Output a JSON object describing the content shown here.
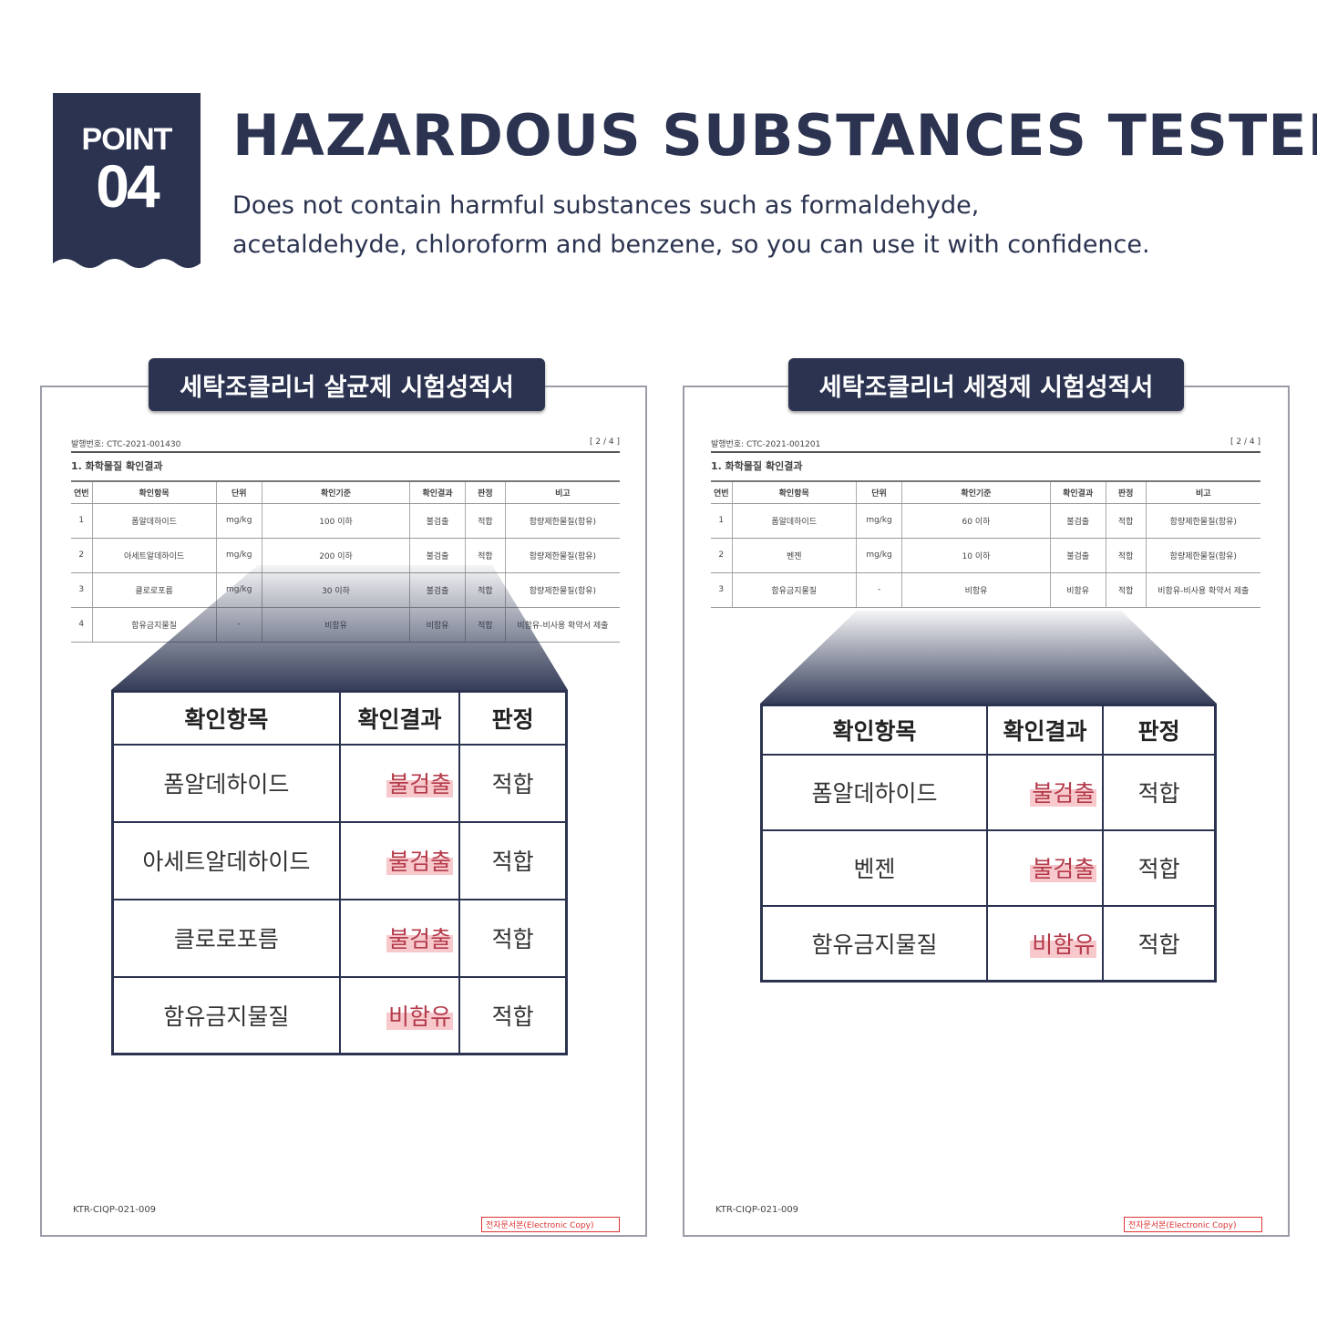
{
  "badge": {
    "label": "POINT",
    "number": "04"
  },
  "title": "HAZARDOUS SUBSTANCES TESTED",
  "subtitle": [
    "Does not contain harmful substances such as formaldehyde,",
    "acetaldehyde, chloroform and benzene, so you can use it with confidence."
  ],
  "colors": {
    "navy": "#2b3350",
    "highlight": "#f7c9cc",
    "stamp": "#dd3333"
  },
  "docs": [
    {
      "heading": "세탁조클리너 살균제 시험성적서",
      "doc_no": "발행번호: CTC-2021-001430",
      "page": "[ 2 / 4 ]",
      "section": "1. 화학물질 확인결과",
      "columns": [
        "연번",
        "확인항목",
        "단위",
        "확인기준",
        "확인결과",
        "판정",
        "비고"
      ],
      "rows": [
        [
          "1",
          "폼알데하이드",
          "mg/kg",
          "100 이하",
          "불검출",
          "적합",
          "함량제한물질(함유)"
        ],
        [
          "2",
          "아세트알데하이드",
          "mg/kg",
          "200 이하",
          "불검출",
          "적합",
          "함량제한물질(함유)"
        ],
        [
          "3",
          "클로로포름",
          "mg/kg",
          "30 이하",
          "불검출",
          "적합",
          "함량제한물질(함유)"
        ],
        [
          "4",
          "함유금지물질",
          "-",
          "비함유",
          "비함유",
          "적합",
          "비함유-비사용 확약서 제출"
        ]
      ],
      "zoom_columns": [
        "확인항목",
        "확인결과",
        "판정"
      ],
      "zoom_rows": [
        [
          "폼알데하이드",
          "불검출",
          "적합"
        ],
        [
          "아세트알데하이드",
          "불검출",
          "적합"
        ],
        [
          "클로로포름",
          "불검출",
          "적합"
        ],
        [
          "함유금지물질",
          "비함유",
          "적합"
        ]
      ],
      "footer_code": "KTR-CIQP-021-009",
      "stamp": "전자문서본(Electronic Copy)"
    },
    {
      "heading": "세탁조클리너 세정제 시험성적서",
      "doc_no": "발행번호: CTC-2021-001201",
      "page": "[ 2 / 4 ]",
      "section": "1. 화학물질 확인결과",
      "columns": [
        "연번",
        "확인항목",
        "단위",
        "확인기준",
        "확인결과",
        "판정",
        "비고"
      ],
      "rows": [
        [
          "1",
          "폼알데하이드",
          "mg/kg",
          "60 이하",
          "불검출",
          "적합",
          "함량제한물질(함유)"
        ],
        [
          "2",
          "벤젠",
          "mg/kg",
          "10 이하",
          "불검출",
          "적합",
          "함량제한물질(함유)"
        ],
        [
          "3",
          "함유금지물질",
          "-",
          "비함유",
          "비함유",
          "적합",
          "비함유-비사용 확약서 제출"
        ]
      ],
      "zoom_columns": [
        "확인항목",
        "확인결과",
        "판정"
      ],
      "zoom_rows": [
        [
          "폼알데하이드",
          "불검출",
          "적합"
        ],
        [
          "벤젠",
          "불검출",
          "적합"
        ],
        [
          "함유금지물질",
          "비함유",
          "적합"
        ]
      ],
      "footer_code": "KTR-CIQP-021-009",
      "stamp": "전자문서본(Electronic Copy)"
    }
  ]
}
